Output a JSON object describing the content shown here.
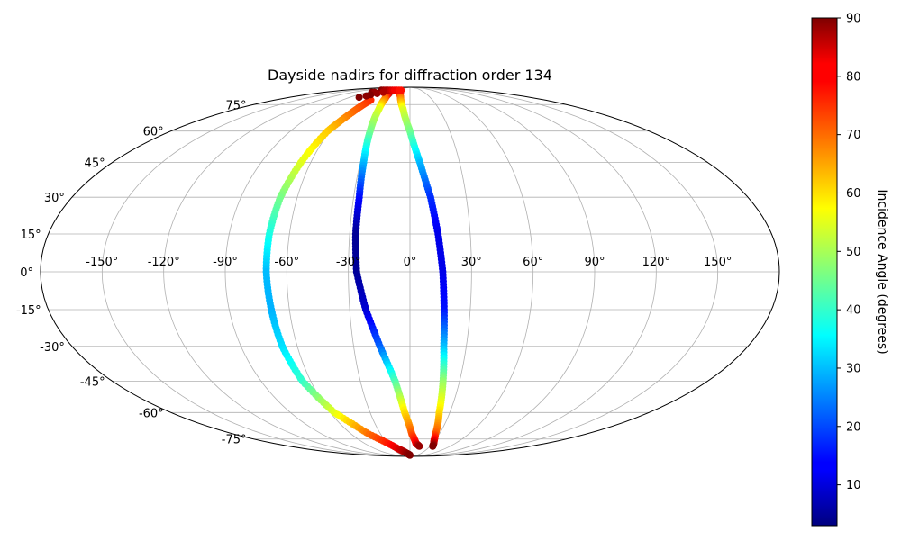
{
  "chart_data": {
    "type": "scatter",
    "title": "Dayside nadirs for diffraction order 134",
    "projection": "mollweide",
    "grid": true,
    "lon_tick_labels": [
      "-150°",
      "-120°",
      "-90°",
      "-60°",
      "-30°",
      "0°",
      "30°",
      "60°",
      "90°",
      "120°",
      "150°"
    ],
    "lon_ticks": [
      -150,
      -120,
      -90,
      -60,
      -30,
      0,
      30,
      60,
      90,
      120,
      150
    ],
    "lat_tick_labels": [
      "-75°",
      "-60°",
      "-45°",
      "-30°",
      "-15°",
      "0°",
      "15°",
      "30°",
      "45°",
      "60°",
      "75°"
    ],
    "lat_ticks": [
      -75,
      -60,
      -45,
      -30,
      -15,
      0,
      15,
      30,
      45,
      60,
      75
    ],
    "colorbar": {
      "label": "Incidence Angle (degrees)",
      "colormap": "jet",
      "range": [
        3,
        90
      ],
      "tick_labels": [
        "10",
        "20",
        "30",
        "40",
        "50",
        "60",
        "70",
        "80",
        "90"
      ],
      "ticks": [
        10,
        20,
        30,
        40,
        50,
        60,
        70,
        80,
        90
      ]
    },
    "series": [
      {
        "points": [
          [
            -52,
            78,
            76
          ],
          [
            -56,
            70,
            70
          ],
          [
            -62,
            60,
            62
          ],
          [
            -66,
            45,
            55
          ],
          [
            -69,
            30,
            46
          ],
          [
            -70,
            15,
            38
          ],
          [
            -70,
            0,
            30
          ],
          [
            -69,
            -15,
            29
          ],
          [
            -68,
            -30,
            33
          ],
          [
            -65,
            -45,
            40
          ],
          [
            -57,
            -60,
            55
          ],
          [
            -42,
            -72,
            70
          ],
          [
            -20,
            -82,
            82
          ],
          [
            -8,
            -86,
            88
          ],
          [
            0,
            -88,
            90
          ]
        ]
      },
      {
        "points": [
          [
            -40,
            83,
            84
          ],
          [
            -35,
            79,
            70
          ],
          [
            -32,
            72,
            55
          ],
          [
            -30,
            60,
            46
          ],
          [
            -28,
            45,
            30
          ],
          [
            -27,
            30,
            15
          ],
          [
            -27,
            15,
            5
          ],
          [
            -26,
            0,
            5
          ],
          [
            -22,
            -15,
            10
          ],
          [
            -16,
            -30,
            22
          ],
          [
            -9,
            -45,
            42
          ],
          [
            -4,
            -60,
            60
          ],
          [
            2,
            -72,
            72
          ],
          [
            8,
            -78,
            80
          ],
          [
            14,
            -80,
            88
          ]
        ]
      },
      {
        "points": [
          [
            -20,
            84,
            82
          ],
          [
            -14,
            80,
            70
          ],
          [
            -7,
            72,
            55
          ],
          [
            0,
            60,
            46
          ],
          [
            6,
            45,
            30
          ],
          [
            11,
            30,
            18
          ],
          [
            14,
            15,
            12
          ],
          [
            16,
            0,
            12
          ],
          [
            17,
            -15,
            15
          ],
          [
            18,
            -30,
            30
          ],
          [
            20,
            -45,
            48
          ],
          [
            22,
            -60,
            60
          ],
          [
            26,
            -72,
            72
          ],
          [
            29,
            -76,
            80
          ],
          [
            34,
            -80,
            90
          ]
        ]
      },
      {
        "points": [
          [
            -78,
            86,
            90
          ],
          [
            -72,
            86,
            88
          ],
          [
            -66,
            86,
            86
          ],
          [
            -60,
            86,
            86
          ],
          [
            -54,
            86,
            84
          ],
          [
            -48,
            86,
            82
          ],
          [
            -42,
            86,
            80
          ],
          [
            -36,
            86,
            80
          ],
          [
            -30,
            86,
            78
          ],
          [
            -24,
            86,
            78
          ],
          [
            -80,
            84,
            90
          ],
          [
            -74,
            84,
            88
          ],
          [
            -68,
            82,
            90
          ],
          [
            -62,
            83,
            88
          ],
          [
            -56,
            84,
            86
          ],
          [
            -76,
            80,
            90
          ],
          [
            -70,
            81,
            89
          ]
        ]
      }
    ]
  }
}
